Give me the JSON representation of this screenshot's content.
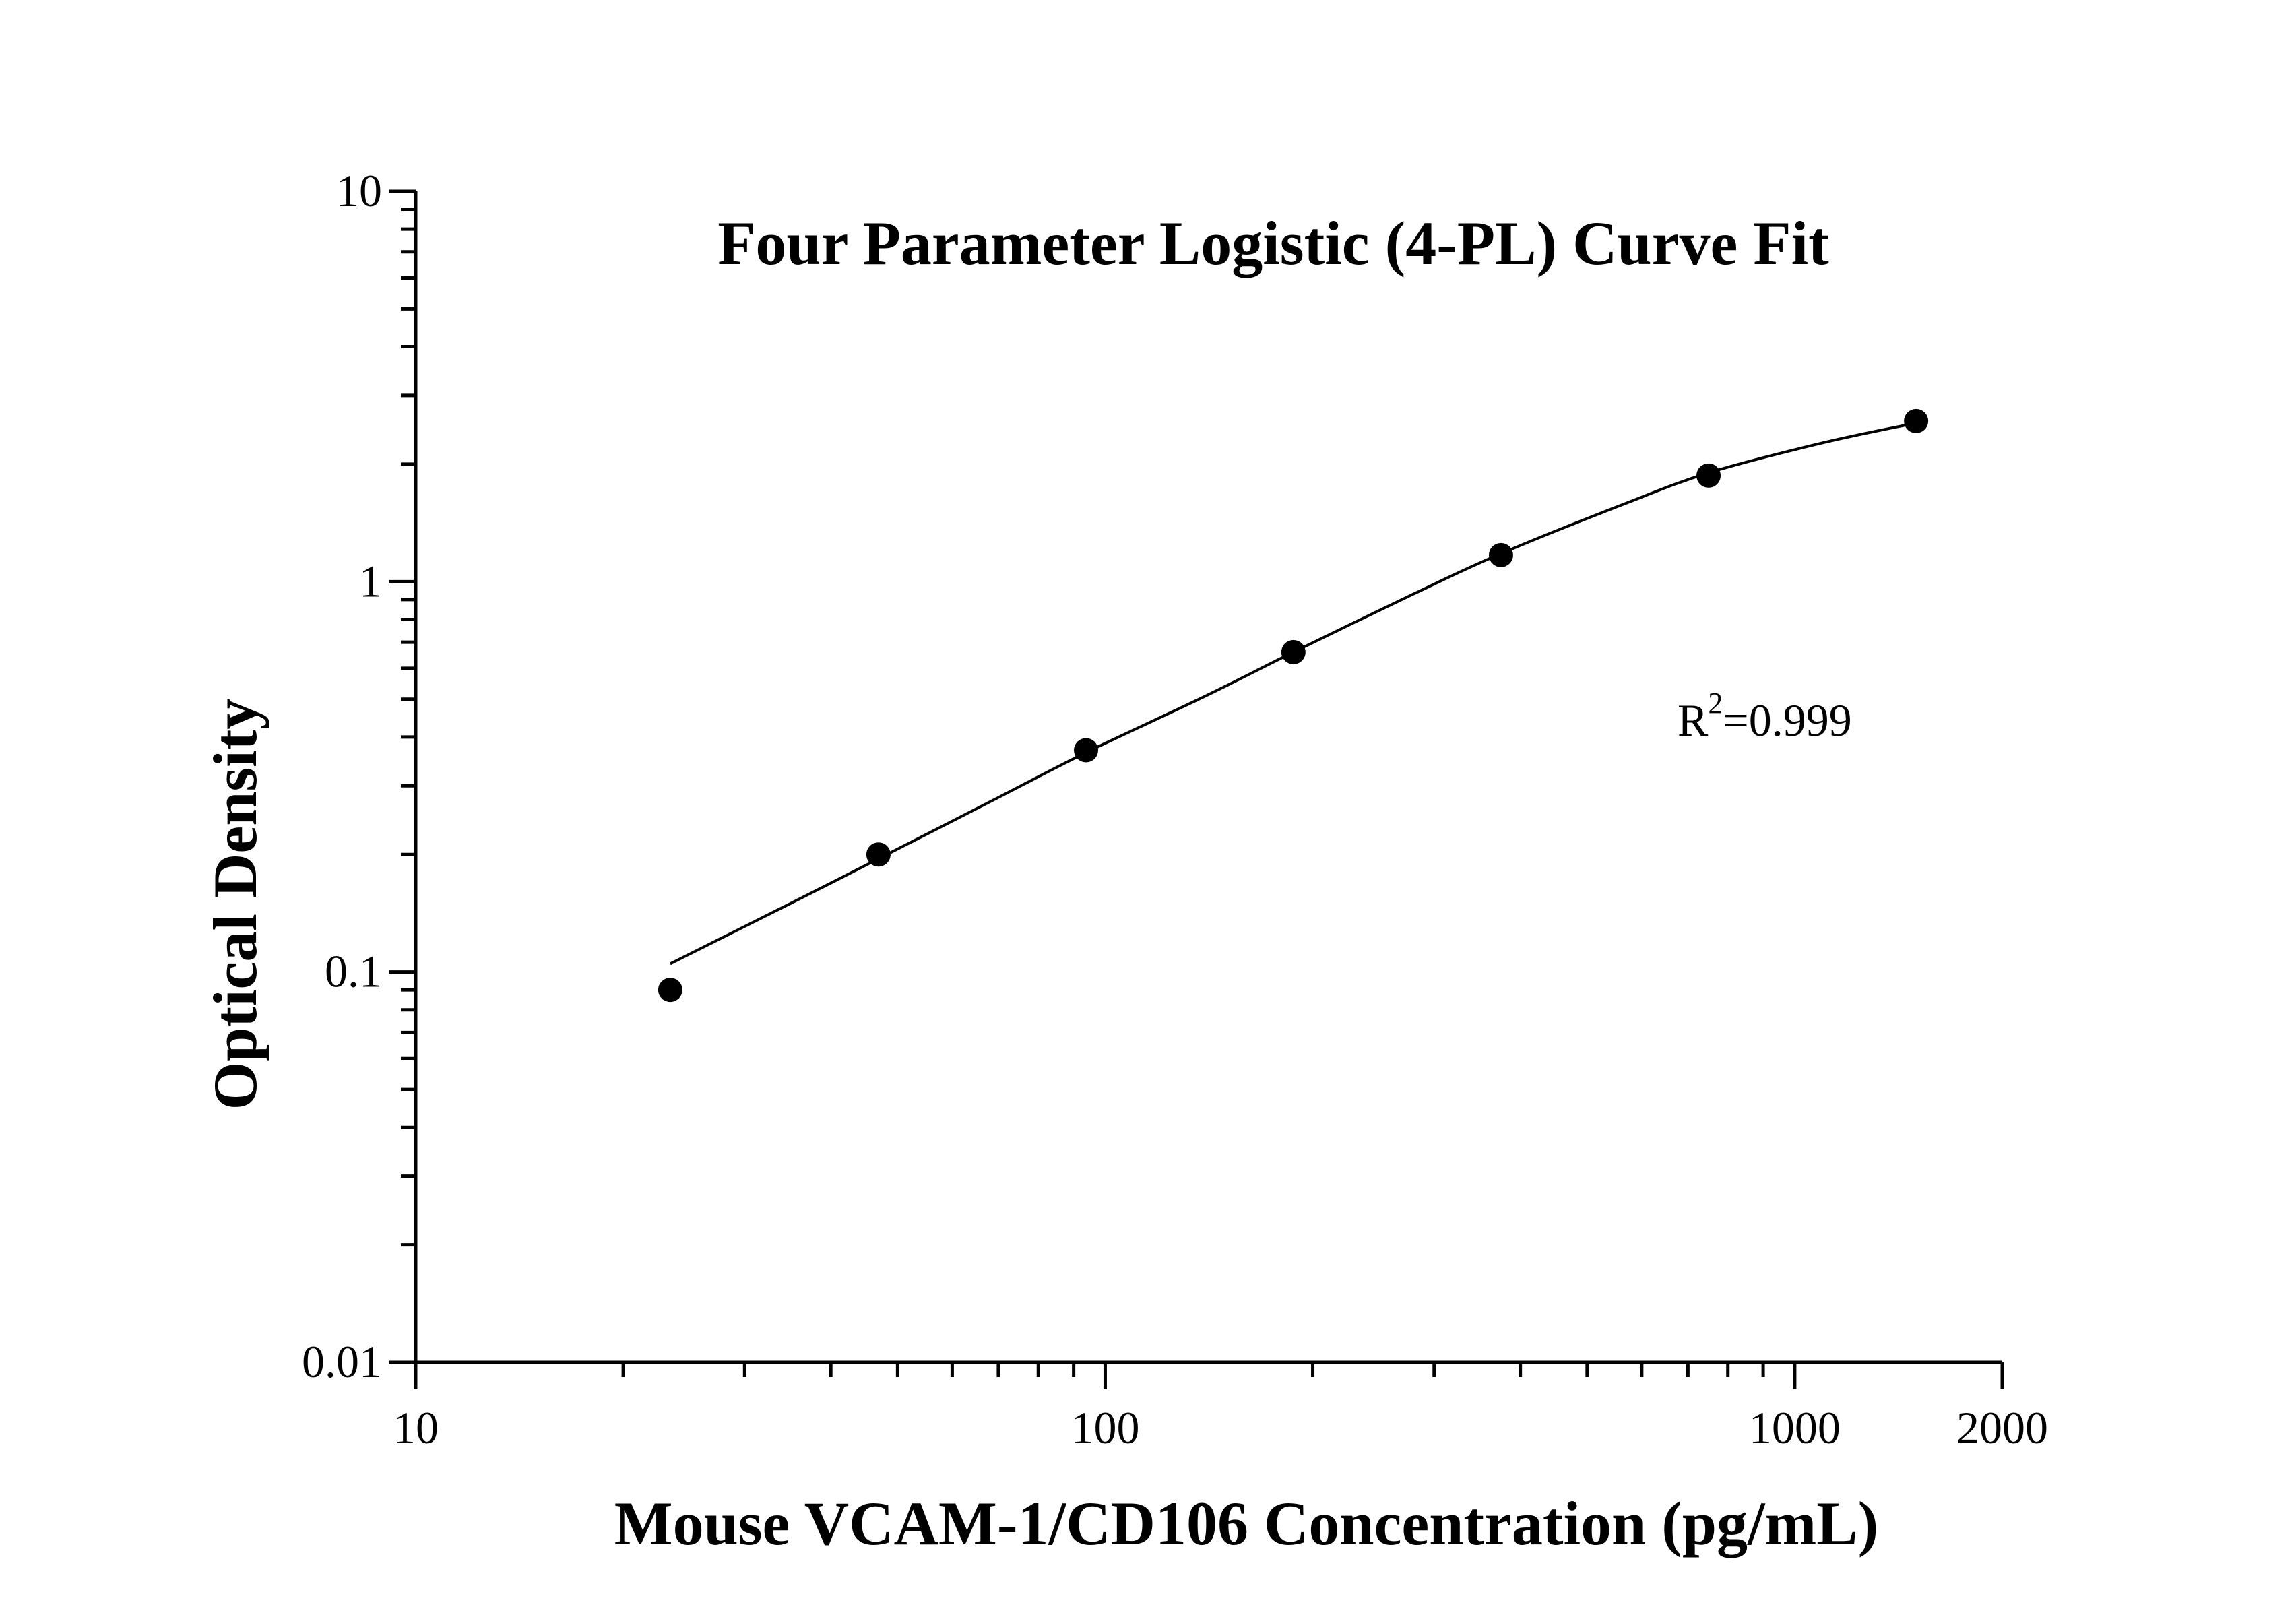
{
  "chart_data": {
    "type": "scatter",
    "title": "Four Parameter Logistic (4-PL) Curve Fit",
    "xlabel": "Mouse VCAM-1/CD106 Concentration (pg/mL)",
    "ylabel": "Optical Density",
    "x_scale": "log",
    "y_scale": "log",
    "xlim": [
      10,
      2000
    ],
    "ylim": [
      0.01,
      10
    ],
    "x_tick_labels": [
      "10",
      "100",
      "1000",
      "2000"
    ],
    "x_tick_values": [
      10,
      100,
      1000,
      2000
    ],
    "y_tick_labels": [
      "0.01",
      "0.1",
      "1",
      "10"
    ],
    "y_tick_values": [
      0.01,
      0.1,
      1,
      10
    ],
    "annotation": {
      "base": "R",
      "sup": "2",
      "rest": "=0.999"
    },
    "grid": false,
    "legend": "none",
    "series": [
      {
        "kind": "points",
        "x": [
          23.4,
          46.9,
          93.8,
          187.5,
          375,
          750,
          1500
        ],
        "y": [
          0.09,
          0.2,
          0.37,
          0.66,
          1.17,
          1.87,
          2.58
        ],
        "color": "#000000"
      },
      {
        "kind": "fit-curve",
        "x": [
          23.4,
          35,
          46.9,
          70,
          93.8,
          140,
          187.5,
          280,
          375,
          560,
          750,
          1100,
          1500
        ],
        "y": [
          0.105,
          0.15,
          0.195,
          0.28,
          0.365,
          0.51,
          0.66,
          0.93,
          1.18,
          1.57,
          1.9,
          2.27,
          2.55
        ],
        "color": "#000000"
      }
    ]
  }
}
